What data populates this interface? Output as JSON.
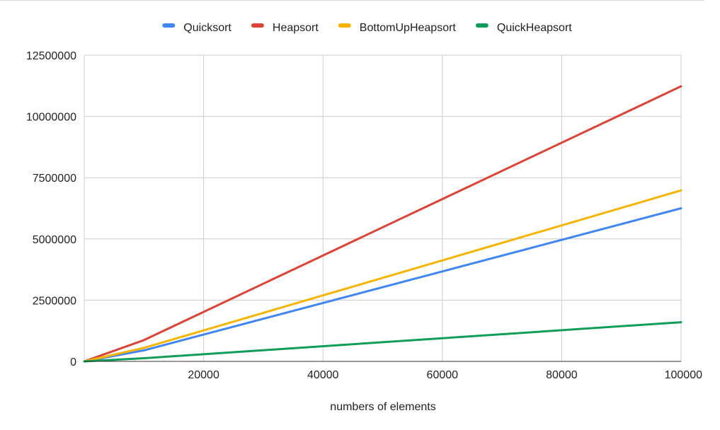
{
  "chart_data": {
    "type": "line",
    "title": "",
    "xlabel": "numbers of elements",
    "ylabel": "",
    "x": [
      0,
      10000,
      100000
    ],
    "xlim": [
      0,
      100000
    ],
    "ylim": [
      0,
      12500000
    ],
    "x_ticks": [
      20000,
      40000,
      60000,
      80000,
      100000
    ],
    "y_ticks": [
      0,
      2500000,
      5000000,
      7500000,
      10000000,
      12500000
    ],
    "x_tick_labels": [
      "20000",
      "40000",
      "60000",
      "80000",
      "100000"
    ],
    "y_tick_labels": [
      "0",
      "2500000",
      "5000000",
      "7500000",
      "10000000",
      "12500000"
    ],
    "grid": true,
    "legend_position": "top",
    "series": [
      {
        "name": "Quicksort",
        "color": "#4285F4",
        "values": [
          0,
          450000,
          6250000
        ]
      },
      {
        "name": "Heapsort",
        "color": "#DB4437",
        "values": [
          0,
          870000,
          11230000
        ]
      },
      {
        "name": "BottomUpHeapsort",
        "color": "#F4B400",
        "values": [
          0,
          550000,
          6980000
        ]
      },
      {
        "name": "QuickHeapsort",
        "color": "#0F9D58",
        "values": [
          0,
          130000,
          1600000
        ]
      }
    ]
  }
}
